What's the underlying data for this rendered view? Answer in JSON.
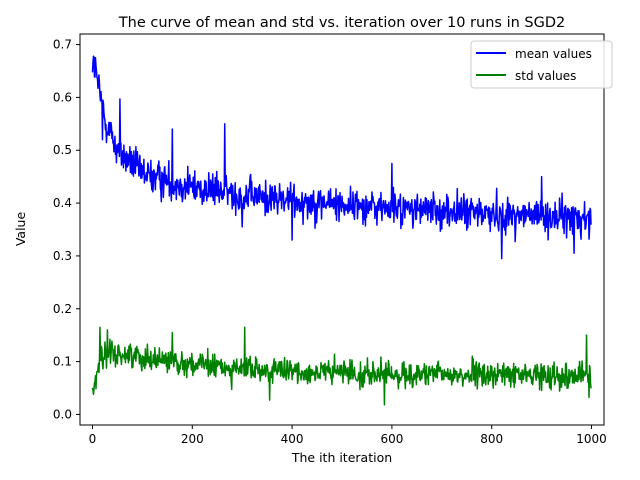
{
  "chart_data": {
    "type": "line",
    "title": "The curve of mean and std vs. iteration over 10 runs in SGD2",
    "xlabel": "The ith iteration",
    "ylabel": "Value",
    "xlim": [
      -25,
      1025
    ],
    "ylim": [
      -0.02,
      0.72
    ],
    "xticks": [
      0,
      200,
      400,
      600,
      800,
      1000
    ],
    "yticks": [
      0.0,
      0.1,
      0.2,
      0.3,
      0.4,
      0.5,
      0.6,
      0.7
    ],
    "xtick_labels": [
      "0",
      "200",
      "400",
      "600",
      "800",
      "1000"
    ],
    "ytick_labels": [
      "0.0",
      "0.1",
      "0.2",
      "0.3",
      "0.4",
      "0.5",
      "0.6",
      "0.7"
    ],
    "grid": false,
    "legend_position": "top-right",
    "n_points": 1000,
    "series": [
      {
        "name": "mean values",
        "color": "#0000ff",
        "trend": [
          [
            0,
            0.665
          ],
          [
            10,
            0.63
          ],
          [
            25,
            0.56
          ],
          [
            50,
            0.5
          ],
          [
            100,
            0.455
          ],
          [
            200,
            0.43
          ],
          [
            300,
            0.415
          ],
          [
            400,
            0.405
          ],
          [
            500,
            0.398
          ],
          [
            600,
            0.39
          ],
          [
            700,
            0.385
          ],
          [
            800,
            0.38
          ],
          [
            900,
            0.375
          ],
          [
            1000,
            0.37
          ]
        ],
        "noise_amplitude": 0.028,
        "extremes": [
          [
            2,
            0.678
          ],
          [
            6,
            0.675
          ],
          [
            20,
            0.52
          ],
          [
            55,
            0.597
          ],
          [
            160,
            0.54
          ],
          [
            265,
            0.55
          ],
          [
            300,
            0.355
          ],
          [
            400,
            0.33
          ],
          [
            600,
            0.475
          ],
          [
            820,
            0.295
          ],
          [
            900,
            0.45
          ],
          [
            965,
            0.305
          ]
        ]
      },
      {
        "name": "std values",
        "color": "#008000",
        "trend": [
          [
            0,
            0.045
          ],
          [
            5,
            0.06
          ],
          [
            15,
            0.11
          ],
          [
            50,
            0.115
          ],
          [
            100,
            0.11
          ],
          [
            200,
            0.095
          ],
          [
            300,
            0.085
          ],
          [
            400,
            0.08
          ],
          [
            500,
            0.08
          ],
          [
            600,
            0.075
          ],
          [
            700,
            0.075
          ],
          [
            800,
            0.075
          ],
          [
            900,
            0.075
          ],
          [
            1000,
            0.075
          ]
        ],
        "noise_amplitude": 0.02,
        "extremes": [
          [
            2,
            0.038
          ],
          [
            15,
            0.165
          ],
          [
            30,
            0.16
          ],
          [
            160,
            0.155
          ],
          [
            305,
            0.165
          ],
          [
            355,
            0.027
          ],
          [
            585,
            0.018
          ],
          [
            990,
            0.15
          ],
          [
            995,
            0.032
          ]
        ]
      }
    ]
  }
}
